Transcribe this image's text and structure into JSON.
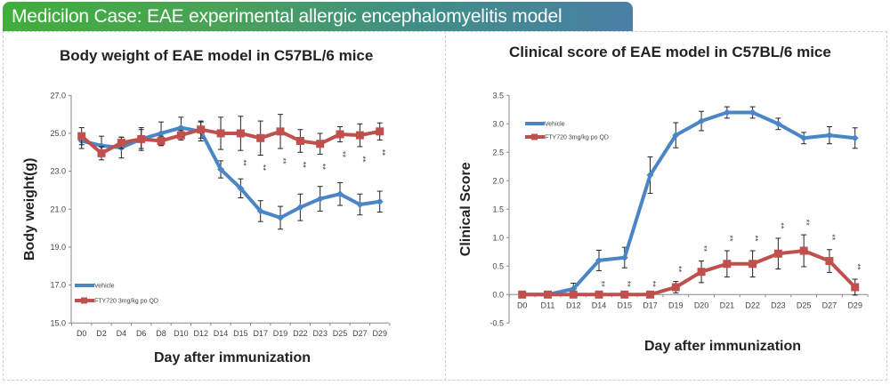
{
  "banner": {
    "title": "Medicilon Case: EAE experimental allergic encephalomyelitis model",
    "colors": [
      "#3fae3a",
      "#4a7fa6"
    ]
  },
  "chart_data": [
    {
      "type": "line",
      "title": "Body weight of EAE model in C57BL/6 mice",
      "xlabel": "Day after immunization",
      "ylabel": "Body weight(g)",
      "ylim": [
        15.0,
        27.0
      ],
      "yticks": [
        "15.0",
        "17.0",
        "19.0",
        "21.0",
        "23.0",
        "25.0",
        "27.0"
      ],
      "categories": [
        "D0",
        "D2",
        "D4",
        "D6",
        "D8",
        "D10",
        "D12",
        "D14",
        "D15",
        "D17",
        "D19",
        "D22",
        "D23",
        "D25",
        "D27",
        "D29"
      ],
      "legend": "bottom-left",
      "grid": false,
      "series": [
        {
          "name": "Vehicle",
          "color": "#4a86c5",
          "values": [
            24.6,
            24.35,
            24.25,
            24.7,
            25.0,
            25.3,
            25.1,
            23.1,
            22.1,
            20.9,
            20.55,
            21.1,
            21.55,
            21.8,
            21.25,
            21.4
          ],
          "errors": [
            0.4,
            0.5,
            0.55,
            0.5,
            0.6,
            0.55,
            0.5,
            0.45,
            0.5,
            0.55,
            0.6,
            0.7,
            0.65,
            0.6,
            0.55,
            0.55
          ]
        },
        {
          "name": "FTY720 3mg/kg po QD",
          "color": "#c0504d",
          "values": [
            24.85,
            23.95,
            24.5,
            24.7,
            24.6,
            24.9,
            25.2,
            25.0,
            25.0,
            24.75,
            25.1,
            24.6,
            24.45,
            24.95,
            24.9,
            25.1
          ],
          "errors": [
            0.45,
            0.35,
            0.3,
            0.6,
            0.25,
            0.25,
            0.45,
            0.85,
            0.9,
            0.9,
            0.9,
            0.6,
            0.55,
            0.4,
            0.6,
            0.45
          ]
        }
      ],
      "significance": {
        "label": "**",
        "categories": [
          "D15",
          "D17",
          "D19",
          "D22",
          "D23",
          "D25",
          "D27",
          "D29"
        ]
      }
    },
    {
      "type": "line",
      "title": "Clinical score of EAE model in C57BL/6 mice",
      "xlabel": "Day after immunization",
      "ylabel": "Clinical Score",
      "ylim": [
        -0.5,
        3.5
      ],
      "yticks": [
        "-0.5",
        "0.0",
        "0.5",
        "1.0",
        "1.5",
        "2.0",
        "2.5",
        "3.0",
        "3.5"
      ],
      "categories": [
        "D0",
        "D11",
        "D12",
        "D14",
        "D15",
        "D17",
        "D19",
        "D20",
        "D21",
        "D22",
        "D23",
        "D25",
        "D27",
        "D29"
      ],
      "legend": "top-left",
      "grid": false,
      "series": [
        {
          "name": "Vehicle",
          "color": "#4a86c5",
          "values": [
            0,
            0,
            0.1,
            0.6,
            0.65,
            2.1,
            2.8,
            3.05,
            3.2,
            3.2,
            3.0,
            2.75,
            2.8,
            2.75
          ],
          "errors": [
            0,
            0,
            0.1,
            0.18,
            0.18,
            0.32,
            0.22,
            0.17,
            0.1,
            0.1,
            0.1,
            0.1,
            0.15,
            0.18
          ]
        },
        {
          "name": "FTY720 3mg/kg po QD",
          "color": "#c0504d",
          "values": [
            0,
            0,
            0,
            0,
            0,
            0,
            0.13,
            0.4,
            0.54,
            0.54,
            0.72,
            0.77,
            0.59,
            0.13
          ],
          "errors": [
            0,
            0,
            0,
            0,
            0,
            0,
            0.1,
            0.19,
            0.23,
            0.23,
            0.27,
            0.28,
            0.2,
            0.14
          ]
        }
      ],
      "significance": {
        "label": "**",
        "categories": [
          "D14",
          "D15",
          "D17",
          "D19",
          "D20",
          "D21",
          "D22",
          "D23",
          "D25",
          "D27",
          "D29"
        ]
      }
    }
  ]
}
